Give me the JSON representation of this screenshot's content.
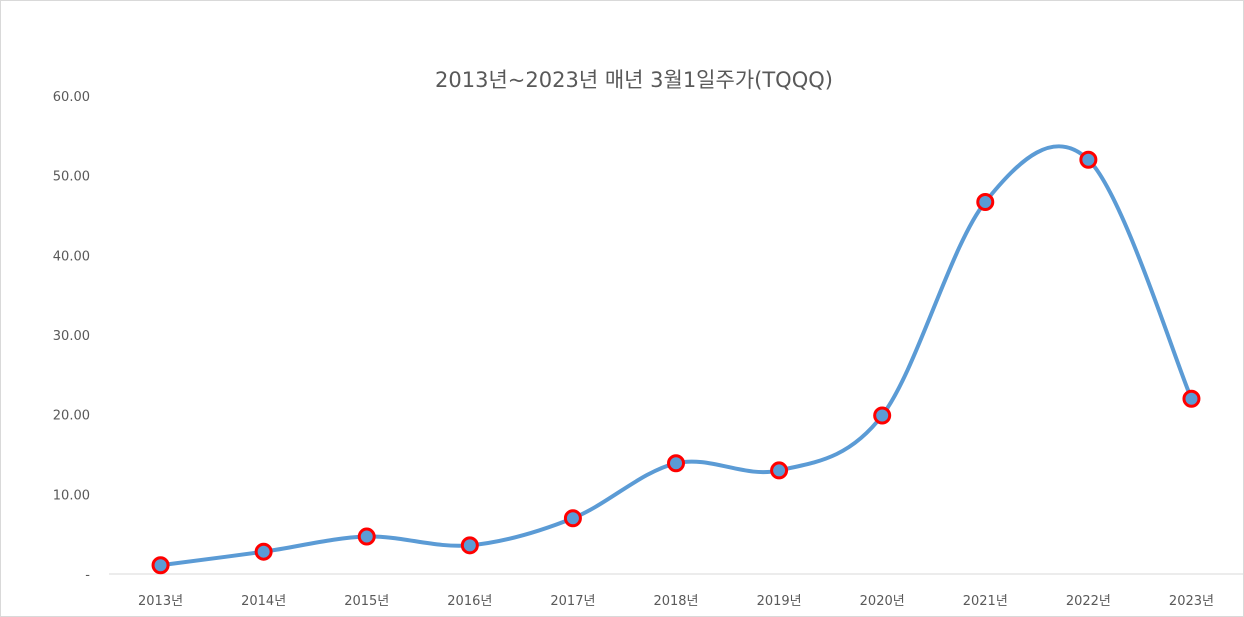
{
  "chart_data": {
    "type": "line",
    "title": "2013년~2023년 매년 3월1일주가(TQQQ)",
    "xlabel": "",
    "ylabel": "",
    "categories": [
      "2013년",
      "2014년",
      "2015년",
      "2016년",
      "2017년",
      "2018년",
      "2019년",
      "2020년",
      "2021년",
      "2022년",
      "2023년"
    ],
    "series": [
      {
        "values": [
          1.1,
          2.8,
          4.7,
          3.6,
          7.0,
          13.9,
          13.0,
          19.9,
          46.7,
          52.0,
          22.0
        ]
      }
    ],
    "ylim": [
      0,
      60
    ],
    "yticks": [
      0,
      10,
      20,
      30,
      40,
      50,
      60
    ],
    "ytick_labels": [
      "-",
      "10.00",
      "20.00",
      "30.00",
      "40.00",
      "50.00",
      "60.00"
    ],
    "smooth": true,
    "grid": false,
    "legend": "none",
    "colors": {
      "line": "#5b9bd5",
      "marker_fill": "#5b9bd5",
      "marker_edge": "#ff0000",
      "axis": "#d9d9d9",
      "text": "#595959"
    }
  }
}
